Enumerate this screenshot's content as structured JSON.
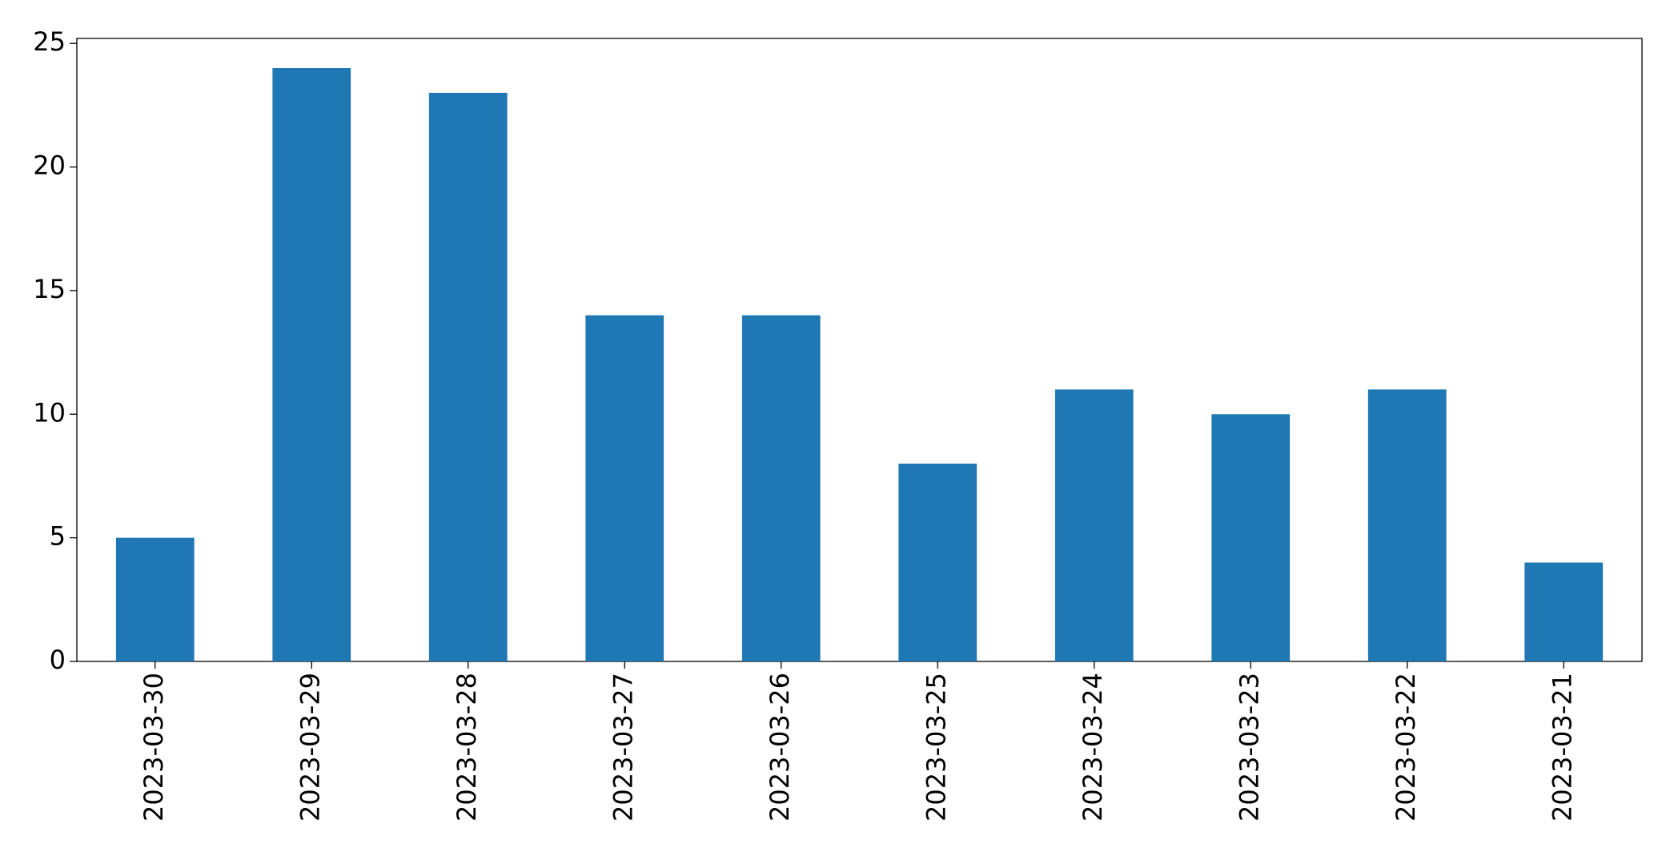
{
  "chart_data": {
    "type": "bar",
    "categories": [
      "2023-03-30",
      "2023-03-29",
      "2023-03-28",
      "2023-03-27",
      "2023-03-26",
      "2023-03-25",
      "2023-03-24",
      "2023-03-23",
      "2023-03-22",
      "2023-03-21"
    ],
    "values": [
      5,
      24,
      23,
      14,
      14,
      8,
      11,
      10,
      11,
      4
    ],
    "color": "#1f77b4",
    "ylim": [
      0,
      25.2
    ],
    "yticks": [
      0,
      5,
      10,
      15,
      20,
      25
    ],
    "grid": false
  }
}
